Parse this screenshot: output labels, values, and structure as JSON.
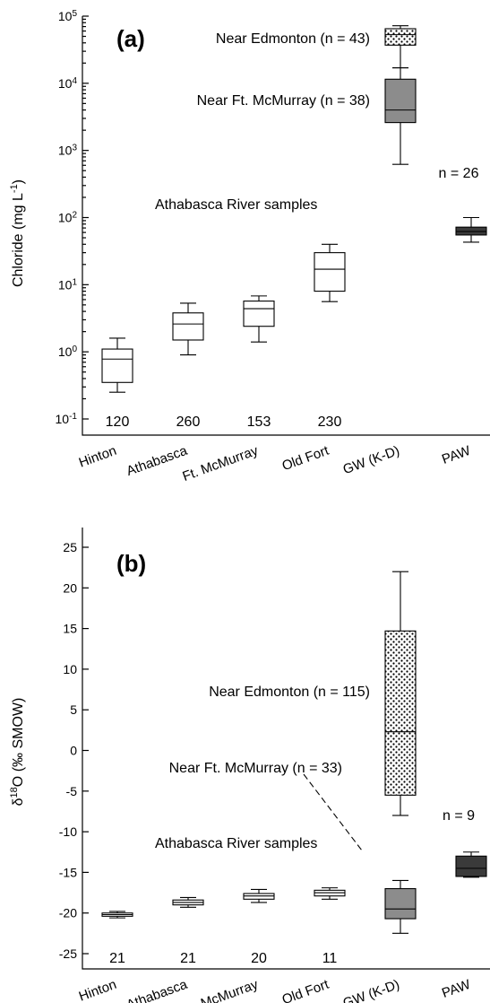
{
  "chart_data": [
    {
      "type": "box",
      "panel_label": "(a)",
      "ylabel_main": "Chloride (mg L",
      "ylabel_sup": "-1",
      "ylabel_end": ")",
      "yscale": "log",
      "ylim": [
        0.1,
        100000
      ],
      "yticks": [
        {
          "value": 0.1,
          "base": "10",
          "exp": "-1"
        },
        {
          "value": 1,
          "base": "10",
          "exp": "0"
        },
        {
          "value": 10,
          "base": "10",
          "exp": "1"
        },
        {
          "value": 100,
          "base": "10",
          "exp": "2"
        },
        {
          "value": 1000,
          "base": "10",
          "exp": "3"
        },
        {
          "value": 10000,
          "base": "10",
          "exp": "4"
        },
        {
          "value": 100000,
          "base": "10",
          "exp": "5"
        }
      ],
      "categories": [
        "Hinton",
        "Athabasca",
        "Ft. McMurray",
        "Old Fort",
        "GW (K-D)",
        "PAW"
      ],
      "boxes": [
        {
          "category": "Hinton",
          "min": 0.25,
          "q1": 0.35,
          "median": 0.78,
          "q3": 1.1,
          "max": 1.6,
          "fill": "#ffffff",
          "count": "120"
        },
        {
          "category": "Athabasca",
          "min": 0.9,
          "q1": 1.5,
          "median": 2.6,
          "q3": 3.8,
          "max": 5.3,
          "fill": "#ffffff",
          "count": "260"
        },
        {
          "category": "Ft. McMurray",
          "min": 1.4,
          "q1": 2.4,
          "median": 4.4,
          "q3": 5.7,
          "max": 6.8,
          "fill": "#ffffff",
          "count": "153"
        },
        {
          "category": "Old Fort",
          "min": 5.6,
          "q1": 8.0,
          "median": 17,
          "q3": 30,
          "max": 40,
          "fill": "#ffffff",
          "count": "230"
        },
        {
          "category": "GW (K-D)",
          "min": 620,
          "q1": 2600,
          "median": 4000,
          "q3": 11500,
          "max": 17000,
          "fill": "#8c8c8c",
          "count": ""
        },
        {
          "category": "GW (K-D)",
          "min": 17000,
          "q1": 37000,
          "median": 53000,
          "q3": 65000,
          "max": 72000,
          "fill": "dots",
          "count": ""
        },
        {
          "category": "PAW",
          "min": 43,
          "q1": 55,
          "median": 62,
          "q3": 72,
          "max": 100,
          "fill": "#3a3a3a",
          "count": ""
        }
      ],
      "annotations": [
        {
          "text": "Near Edmonton (n = 43)",
          "value": 53000
        },
        {
          "text": "Near Ft. McMurray (n = 38)",
          "value": 8500
        },
        {
          "text": "Athabasca River samples",
          "value": 80
        },
        {
          "text": "n = 26",
          "value": 140
        }
      ]
    },
    {
      "type": "box",
      "panel_label": "(b)",
      "ylabel_main": "δ",
      "ylabel_sup": "18",
      "ylabel_end": "O (‰ SMOW)",
      "yscale": "linear",
      "ylim": [
        -27,
        27
      ],
      "yticks": [
        {
          "value": 25,
          "label": "25"
        },
        {
          "value": 20,
          "label": "20"
        },
        {
          "value": 15,
          "label": "15"
        },
        {
          "value": 10,
          "label": "10"
        },
        {
          "value": 5,
          "label": "5"
        },
        {
          "value": 0,
          "label": "0"
        },
        {
          "value": -5,
          "label": "-5"
        },
        {
          "value": -10,
          "label": "-10"
        },
        {
          "value": -15,
          "label": "-15"
        },
        {
          "value": -20,
          "label": "-20"
        },
        {
          "value": -25,
          "label": "-25"
        }
      ],
      "categories": [
        "Hinton",
        "Athabasca",
        "Ft. McMurray",
        "Old Fort",
        "GW (K-D)",
        "PAW"
      ],
      "boxes": [
        {
          "category": "Hinton",
          "min": -20.6,
          "q1": -20.4,
          "median": -20.2,
          "q3": -20.0,
          "max": -19.8,
          "fill": "#ffffff",
          "count": "21"
        },
        {
          "category": "Athabasca",
          "min": -19.3,
          "q1": -19.0,
          "median": -18.7,
          "q3": -18.4,
          "max": -18.1,
          "fill": "#ffffff",
          "count": "21"
        },
        {
          "category": "Ft. McMurray",
          "min": -18.7,
          "q1": -18.3,
          "median": -17.9,
          "q3": -17.6,
          "max": -17.1,
          "fill": "#ffffff",
          "count": "20"
        },
        {
          "category": "Old Fort",
          "min": -18.3,
          "q1": -17.9,
          "median": -17.5,
          "q3": -17.2,
          "max": -16.9,
          "fill": "#ffffff",
          "count": "11"
        },
        {
          "category": "GW (K-D)",
          "min": -22.5,
          "q1": -20.7,
          "median": -19.5,
          "q3": -17.0,
          "max": -16.0,
          "fill": "#8c8c8c",
          "count": ""
        },
        {
          "category": "GW (K-D)",
          "min": -8.0,
          "q1": -5.5,
          "median": 2.3,
          "q3": 14.7,
          "max": 22.0,
          "fill": "dots",
          "count": ""
        },
        {
          "category": "PAW",
          "min": -15.6,
          "q1": -15.5,
          "median": -14.5,
          "q3": -13.0,
          "max": -12.5,
          "fill": "#3a3a3a",
          "count": ""
        }
      ],
      "annotations": [
        {
          "text": "Near Edmonton (n = 115)",
          "value": 14.5
        },
        {
          "text": "Near Ft. McMurray (n = 33)",
          "value": -6.3
        },
        {
          "text": "Athabasca River samples",
          "value": -14.9
        },
        {
          "text": "n = 9",
          "value": -10.5
        }
      ]
    }
  ]
}
